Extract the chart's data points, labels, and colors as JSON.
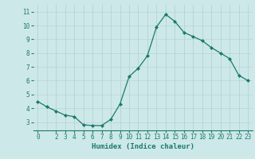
{
  "x": [
    0,
    1,
    2,
    3,
    4,
    5,
    6,
    7,
    8,
    9,
    10,
    11,
    12,
    13,
    14,
    15,
    16,
    17,
    18,
    19,
    20,
    21,
    22,
    23
  ],
  "y": [
    4.5,
    4.1,
    3.8,
    3.5,
    3.4,
    2.8,
    2.75,
    2.75,
    3.2,
    4.3,
    6.3,
    6.9,
    7.8,
    9.9,
    10.8,
    10.3,
    9.5,
    9.2,
    8.9,
    8.4,
    8.0,
    7.6,
    6.4,
    6.0
  ],
  "line_color": "#1a7a6e",
  "marker": "D",
  "marker_size": 2.0,
  "bg_color": "#cde8e8",
  "grid_color": "#b8d4d4",
  "xlabel": "Humidex (Indice chaleur)",
  "ylim": [
    2.4,
    11.5
  ],
  "xlim": [
    -0.5,
    23.5
  ],
  "yticks": [
    3,
    4,
    5,
    6,
    7,
    8,
    9,
    10,
    11
  ],
  "xticks": [
    0,
    2,
    3,
    4,
    5,
    6,
    7,
    8,
    9,
    10,
    11,
    12,
    13,
    14,
    15,
    16,
    17,
    18,
    19,
    20,
    21,
    22,
    23
  ],
  "tick_color": "#1a7a6e",
  "label_fontsize": 6.5,
  "tick_fontsize": 5.5
}
